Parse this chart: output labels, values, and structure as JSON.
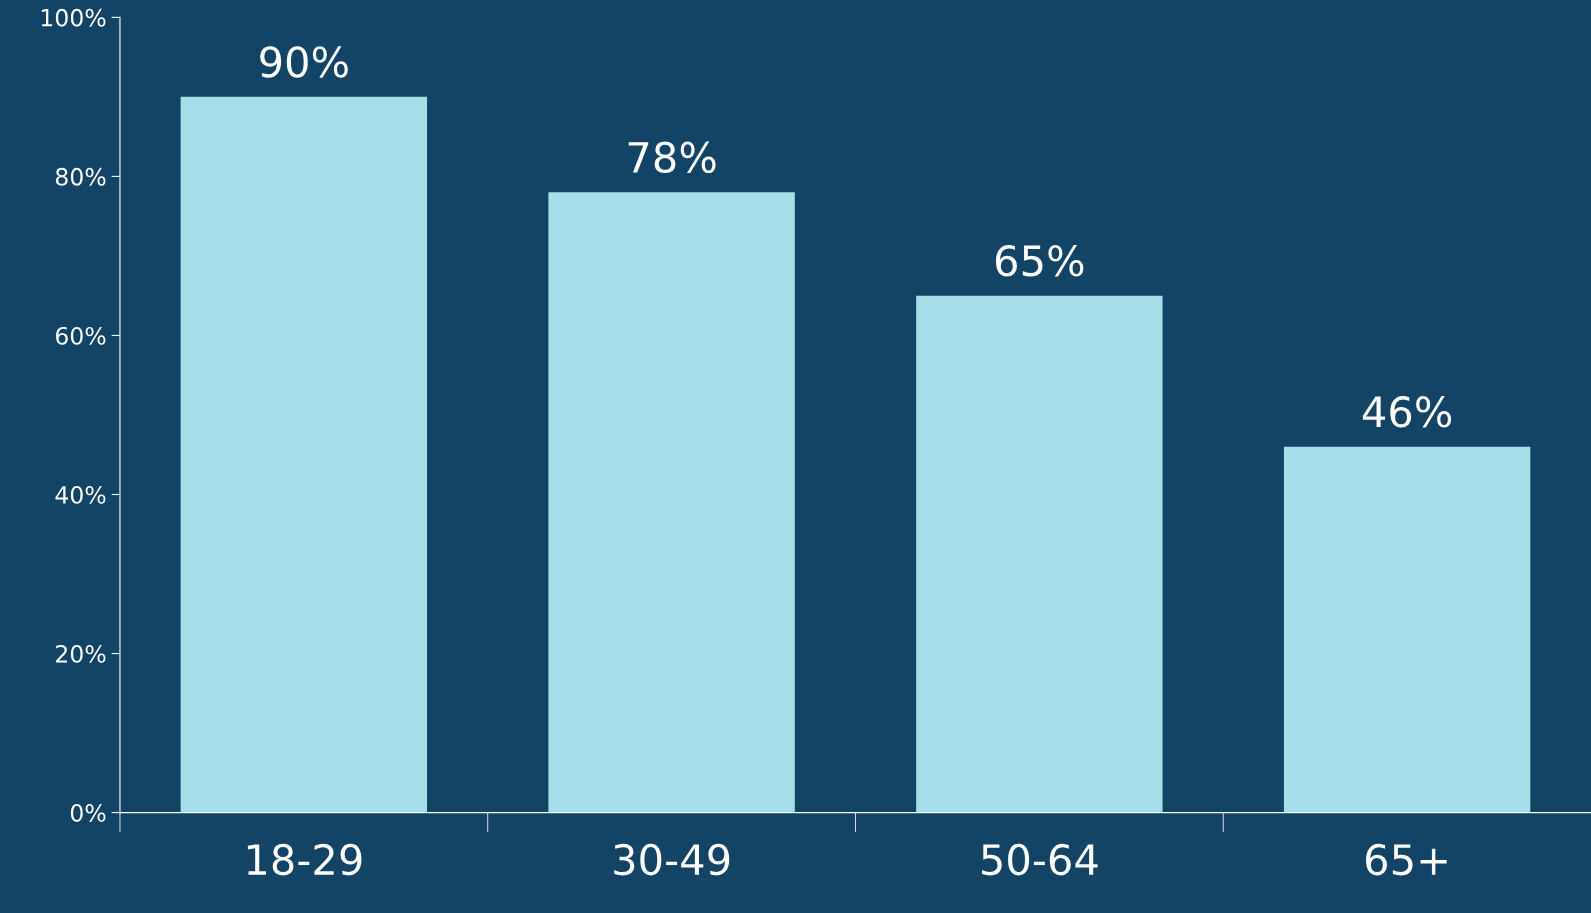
{
  "chart_data": {
    "type": "bar",
    "categories": [
      "18-29",
      "30-49",
      "50-64",
      "65+"
    ],
    "values": [
      90,
      78,
      65,
      46
    ],
    "value_labels": [
      "90%",
      "78%",
      "65%",
      "46%"
    ],
    "color": "#a6dfe9",
    "ylim": [
      0,
      100
    ],
    "yticks": [
      {
        "value": 0,
        "label": "0%"
      },
      {
        "value": 20,
        "label": "20%"
      },
      {
        "value": 40,
        "label": "40%"
      },
      {
        "value": 60,
        "label": "60%"
      },
      {
        "value": 80,
        "label": "80%"
      },
      {
        "value": 100,
        "label": "100%"
      }
    ],
    "grid": false,
    "legend": false
  }
}
